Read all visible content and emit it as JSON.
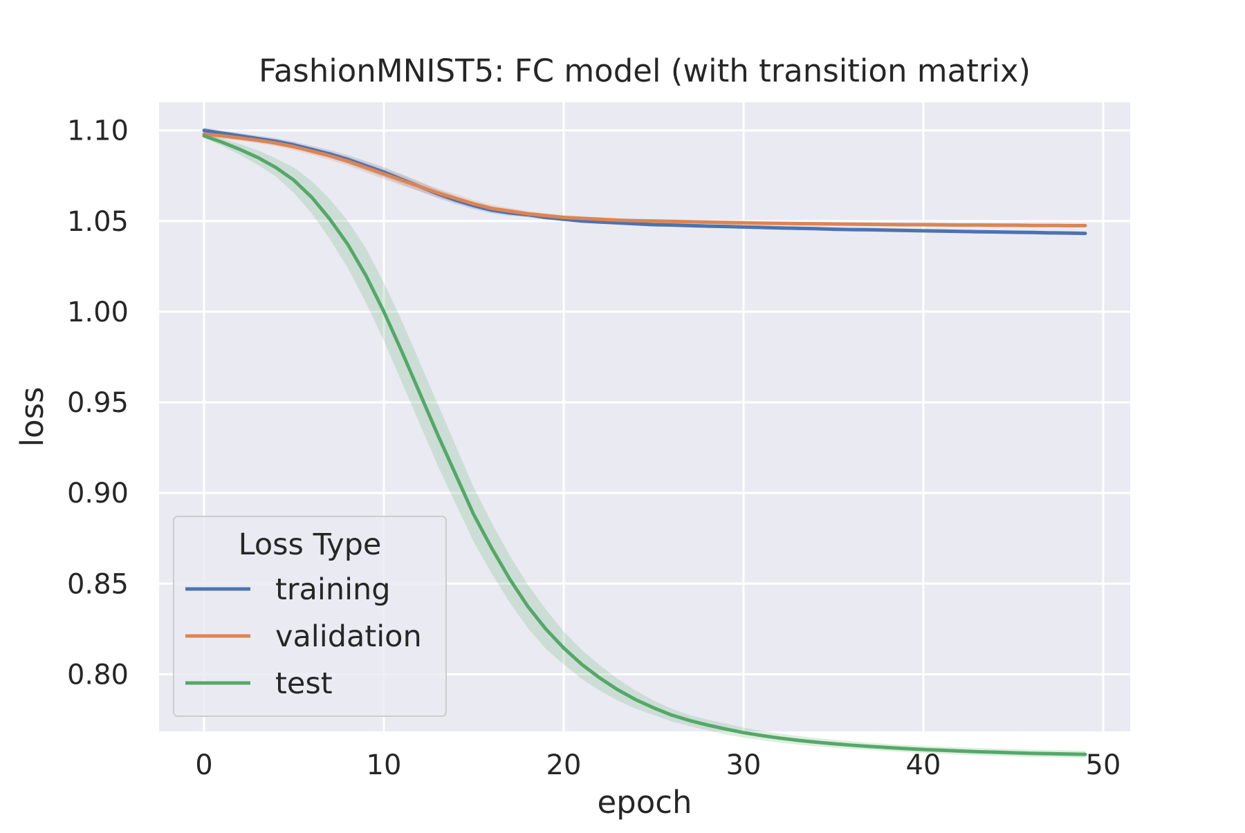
{
  "chart_data": {
    "type": "line",
    "title": "FashionMNIST5: FC model (with transition matrix)",
    "xlabel": "epoch",
    "ylabel": "loss",
    "xlim": [
      -2.5,
      51.5
    ],
    "ylim": [
      0.7685,
      1.1155
    ],
    "xticks": [
      "0",
      "10",
      "20",
      "30",
      "40",
      "50"
    ],
    "yticks": [
      "0.80",
      "0.85",
      "0.90",
      "0.95",
      "1.00",
      "1.05",
      "1.10"
    ],
    "grid": true,
    "legend": {
      "title": "Loss Type",
      "placement": "lower-left"
    },
    "x": [
      0,
      1,
      2,
      3,
      4,
      5,
      6,
      7,
      8,
      9,
      10,
      11,
      12,
      13,
      14,
      15,
      16,
      17,
      18,
      19,
      20,
      21,
      22,
      23,
      24,
      25,
      26,
      27,
      28,
      29,
      30,
      31,
      32,
      33,
      34,
      35,
      36,
      37,
      38,
      39,
      40,
      41,
      42,
      43,
      44,
      45,
      46,
      47,
      48,
      49
    ],
    "series": [
      {
        "name": "training",
        "color": "#4c72b0",
        "values": [
          1.1,
          1.0985,
          1.097,
          1.0955,
          1.094,
          1.092,
          1.0895,
          1.087,
          1.084,
          1.0805,
          1.077,
          1.073,
          1.069,
          1.065,
          1.0615,
          1.0585,
          1.056,
          1.0545,
          1.0535,
          1.052,
          1.051,
          1.05,
          1.0495,
          1.049,
          1.0485,
          1.048,
          1.0478,
          1.0475,
          1.0472,
          1.047,
          1.0467,
          1.0465,
          1.0462,
          1.046,
          1.0458,
          1.0455,
          1.0453,
          1.0452,
          1.045,
          1.0448,
          1.0446,
          1.0445,
          1.0443,
          1.0441,
          1.044,
          1.0438,
          1.0437,
          1.0435,
          1.0434,
          1.0432
        ],
        "band": [
          0.0015,
          0.0015,
          0.0015,
          0.0016,
          0.0017,
          0.0018,
          0.002,
          0.0022,
          0.0024,
          0.0026,
          0.0028,
          0.0028,
          0.0026,
          0.0024,
          0.0022,
          0.002,
          0.0018,
          0.0016,
          0.0014,
          0.0012,
          0.001,
          0.001,
          0.001,
          0.001,
          0.001,
          0.001,
          0.001,
          0.001,
          0.001,
          0.001,
          0.001,
          0.001,
          0.001,
          0.001,
          0.001,
          0.001,
          0.001,
          0.001,
          0.001,
          0.001,
          0.001,
          0.001,
          0.001,
          0.001,
          0.001,
          0.001,
          0.001,
          0.001,
          0.001,
          0.001
        ]
      },
      {
        "name": "validation",
        "color": "#dd8452",
        "values": [
          1.098,
          1.097,
          1.0958,
          1.0945,
          1.093,
          1.091,
          1.0885,
          1.086,
          1.083,
          1.0795,
          1.076,
          1.0725,
          1.069,
          1.0655,
          1.0625,
          1.0595,
          1.057,
          1.0555,
          1.054,
          1.053,
          1.052,
          1.0515,
          1.051,
          1.0505,
          1.0502,
          1.05,
          1.0498,
          1.0496,
          1.0494,
          1.0492,
          1.049,
          1.0488,
          1.0487,
          1.0486,
          1.0485,
          1.0484,
          1.0483,
          1.0482,
          1.0481,
          1.048,
          1.048,
          1.0479,
          1.0478,
          1.0478,
          1.0477,
          1.0477,
          1.0476,
          1.0476,
          1.0475,
          1.0475
        ],
        "band": [
          0.0015,
          0.0015,
          0.0015,
          0.0016,
          0.0017,
          0.0019,
          0.0021,
          0.0023,
          0.0025,
          0.0027,
          0.0029,
          0.0029,
          0.0027,
          0.0025,
          0.0023,
          0.0021,
          0.0019,
          0.0017,
          0.0015,
          0.0013,
          0.0012,
          0.0011,
          0.001,
          0.001,
          0.001,
          0.001,
          0.001,
          0.001,
          0.001,
          0.001,
          0.001,
          0.001,
          0.001,
          0.001,
          0.001,
          0.001,
          0.001,
          0.001,
          0.001,
          0.001,
          0.001,
          0.001,
          0.001,
          0.001,
          0.001,
          0.001,
          0.001,
          0.001,
          0.001,
          0.001
        ]
      },
      {
        "name": "test",
        "color": "#55a868",
        "values": [
          1.097,
          1.0935,
          1.0895,
          1.085,
          1.0795,
          1.0725,
          1.063,
          1.051,
          1.037,
          1.02,
          1.0,
          0.978,
          0.955,
          0.932,
          0.91,
          0.888,
          0.8695,
          0.8525,
          0.8375,
          0.825,
          0.8145,
          0.8055,
          0.798,
          0.7915,
          0.786,
          0.7815,
          0.7775,
          0.7745,
          0.772,
          0.7698,
          0.7678,
          0.7662,
          0.7648,
          0.7636,
          0.7626,
          0.7617,
          0.7609,
          0.7602,
          0.7596,
          0.759,
          0.7585,
          0.7581,
          0.7577,
          0.7573,
          0.757,
          0.7567,
          0.7564,
          0.7562,
          0.756,
          0.7558
        ],
        "band": [
          0.001,
          0.002,
          0.003,
          0.004,
          0.005,
          0.007,
          0.009,
          0.011,
          0.013,
          0.015,
          0.016,
          0.017,
          0.017,
          0.017,
          0.016,
          0.015,
          0.014,
          0.013,
          0.012,
          0.011,
          0.009,
          0.008,
          0.007,
          0.006,
          0.005,
          0.004,
          0.0035,
          0.003,
          0.003,
          0.003,
          0.0028,
          0.0026,
          0.0025,
          0.0024,
          0.0023,
          0.0022,
          0.0021,
          0.002,
          0.002,
          0.002,
          0.002,
          0.002,
          0.002,
          0.002,
          0.002,
          0.002,
          0.002,
          0.002,
          0.002,
          0.002
        ]
      }
    ]
  }
}
